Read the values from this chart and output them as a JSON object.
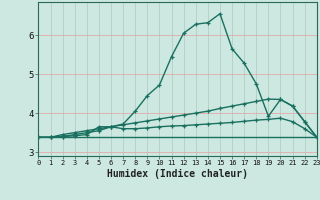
{
  "title": "",
  "xlabel": "Humidex (Indice chaleur)",
  "bg_color": "#cce8e0",
  "grid_color_v": "#b0c8c0",
  "grid_color_h": "#e8a0a0",
  "line_color": "#1a7060",
  "xlim": [
    0,
    23
  ],
  "ylim": [
    2.9,
    6.85
  ],
  "yticks": [
    3,
    4,
    5,
    6
  ],
  "xticks": [
    0,
    1,
    2,
    3,
    4,
    5,
    6,
    7,
    8,
    9,
    10,
    11,
    12,
    13,
    14,
    15,
    16,
    17,
    18,
    19,
    20,
    21,
    22,
    23
  ],
  "line1_x": [
    0,
    1,
    2,
    3,
    4,
    5,
    6,
    7,
    8,
    9,
    10,
    11,
    12,
    13,
    14,
    15,
    16,
    17,
    18,
    19,
    20,
    21,
    22,
    23
  ],
  "line1_y": [
    3.38,
    3.38,
    3.45,
    3.5,
    3.55,
    3.6,
    3.65,
    3.72,
    4.05,
    4.45,
    4.72,
    5.45,
    6.05,
    6.28,
    6.32,
    6.55,
    5.65,
    5.28,
    4.75,
    3.92,
    4.35,
    4.18,
    3.78,
    3.38
  ],
  "line2_x": [
    0,
    1,
    2,
    3,
    4,
    5,
    6,
    7,
    8,
    9,
    10,
    11,
    12,
    13,
    14,
    15,
    16,
    17,
    18,
    19,
    20,
    21,
    22,
    23
  ],
  "line2_y": [
    3.38,
    3.38,
    3.4,
    3.45,
    3.5,
    3.55,
    3.65,
    3.7,
    3.75,
    3.8,
    3.85,
    3.9,
    3.95,
    4.0,
    4.05,
    4.12,
    4.18,
    4.24,
    4.3,
    4.36,
    4.35,
    4.18,
    3.78,
    3.38
  ],
  "line3_x": [
    0,
    1,
    2,
    3,
    4,
    5,
    6,
    7,
    8,
    9,
    10,
    11,
    12,
    13,
    14,
    15,
    16,
    17,
    18,
    19,
    20,
    21,
    22,
    23
  ],
  "line3_y": [
    3.38,
    3.38,
    3.4,
    3.42,
    3.45,
    3.65,
    3.65,
    3.6,
    3.6,
    3.62,
    3.65,
    3.67,
    3.68,
    3.7,
    3.72,
    3.74,
    3.76,
    3.79,
    3.82,
    3.84,
    3.87,
    3.78,
    3.6,
    3.38
  ],
  "line4_x": [
    0,
    1,
    2,
    3,
    4,
    5,
    6,
    7,
    8,
    9,
    10,
    11,
    12,
    13,
    14,
    15,
    16,
    17,
    18,
    19,
    20,
    21,
    22,
    23
  ],
  "line4_y": [
    3.38,
    3.38,
    3.38,
    3.38,
    3.38,
    3.38,
    3.38,
    3.38,
    3.38,
    3.38,
    3.38,
    3.38,
    3.38,
    3.38,
    3.38,
    3.38,
    3.38,
    3.38,
    3.38,
    3.38,
    3.38,
    3.38,
    3.38,
    3.38
  ]
}
